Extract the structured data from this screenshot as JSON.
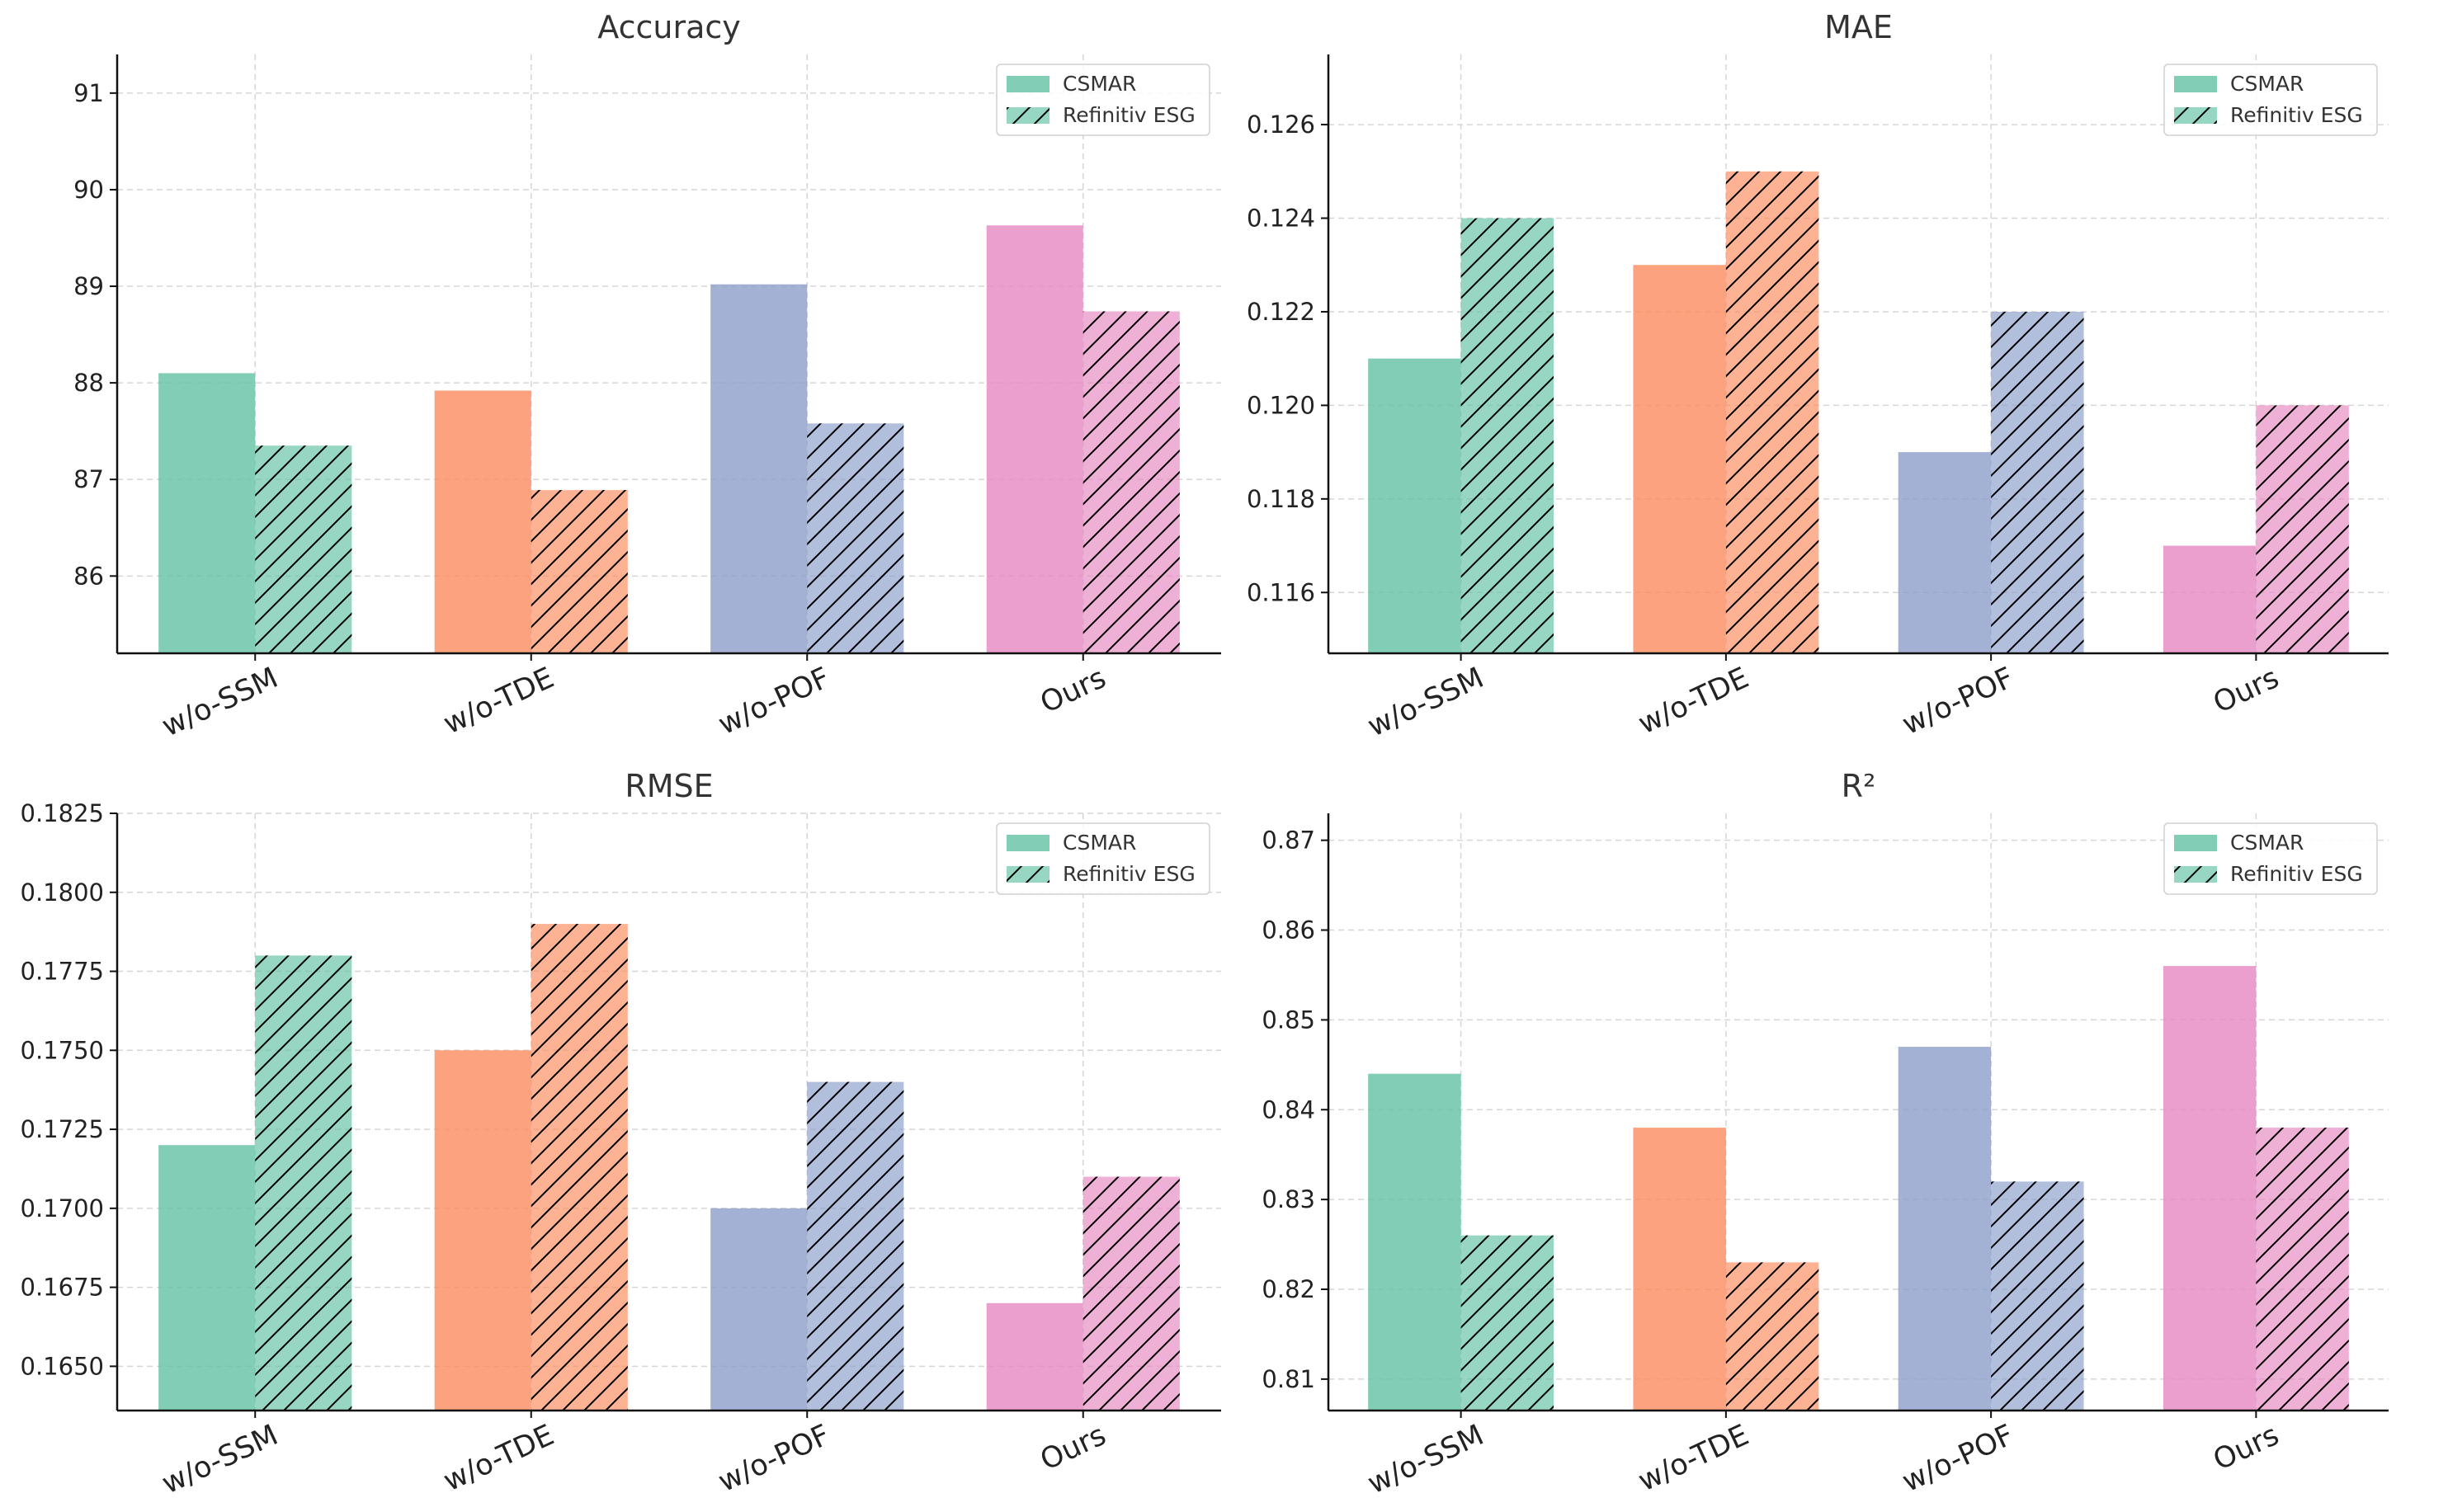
{
  "colors": {
    "categories": [
      "#66c2a5",
      "#fc8d62",
      "#8da0cb",
      "#e78ac3"
    ],
    "hatch": "#000000"
  },
  "legend": {
    "placement": "top-right",
    "series": [
      "CSMAR",
      "Refinitiv ESG"
    ]
  },
  "chart_data": [
    {
      "type": "bar",
      "title": "Accuracy",
      "categories": [
        "w/o-SSM",
        "w/o-TDE",
        "w/o-POF",
        "Ours"
      ],
      "series": [
        {
          "name": "CSMAR",
          "values": [
            88.1,
            87.92,
            89.02,
            89.63
          ]
        },
        {
          "name": "Refinitiv ESG",
          "values": [
            87.35,
            86.89,
            87.58,
            88.74
          ]
        }
      ],
      "ylim": [
        85.2,
        91.4
      ],
      "yticks": [
        86,
        87,
        88,
        89,
        90,
        91
      ],
      "ytick_labels": [
        "86",
        "87",
        "88",
        "89",
        "90",
        "91"
      ],
      "grid": true
    },
    {
      "type": "bar",
      "title": "MAE",
      "categories": [
        "w/o-SSM",
        "w/o-TDE",
        "w/o-POF",
        "Ours"
      ],
      "series": [
        {
          "name": "CSMAR",
          "values": [
            0.121,
            0.123,
            0.119,
            0.117
          ]
        },
        {
          "name": "Refinitiv ESG",
          "values": [
            0.124,
            0.125,
            0.122,
            0.12
          ]
        }
      ],
      "ylim": [
        0.1147,
        0.1275
      ],
      "yticks": [
        0.116,
        0.118,
        0.12,
        0.122,
        0.124,
        0.126
      ],
      "ytick_labels": [
        "0.116",
        "0.118",
        "0.120",
        "0.122",
        "0.124",
        "0.126"
      ],
      "grid": true
    },
    {
      "type": "bar",
      "title": "RMSE",
      "categories": [
        "w/o-SSM",
        "w/o-TDE",
        "w/o-POF",
        "Ours"
      ],
      "series": [
        {
          "name": "CSMAR",
          "values": [
            0.172,
            0.175,
            0.17,
            0.167
          ]
        },
        {
          "name": "Refinitiv ESG",
          "values": [
            0.178,
            0.179,
            0.174,
            0.171
          ]
        }
      ],
      "ylim": [
        0.1636,
        0.1825
      ],
      "yticks": [
        0.165,
        0.1675,
        0.17,
        0.1725,
        0.175,
        0.1775,
        0.18,
        0.1825
      ],
      "ytick_labels": [
        "0.1650",
        "0.1675",
        "0.1700",
        "0.1725",
        "0.1750",
        "0.1775",
        "0.1800",
        "0.1825"
      ],
      "grid": true
    },
    {
      "type": "bar",
      "title": "R²",
      "categories": [
        "w/o-SSM",
        "w/o-TDE",
        "w/o-POF",
        "Ours"
      ],
      "series": [
        {
          "name": "CSMAR",
          "values": [
            0.844,
            0.838,
            0.847,
            0.856
          ]
        },
        {
          "name": "Refinitiv ESG",
          "values": [
            0.826,
            0.823,
            0.832,
            0.838
          ]
        }
      ],
      "ylim": [
        0.8065,
        0.873
      ],
      "yticks": [
        0.81,
        0.82,
        0.83,
        0.84,
        0.85,
        0.86,
        0.87
      ],
      "ytick_labels": [
        "0.81",
        "0.82",
        "0.83",
        "0.84",
        "0.85",
        "0.86",
        "0.87"
      ],
      "grid": true
    }
  ]
}
